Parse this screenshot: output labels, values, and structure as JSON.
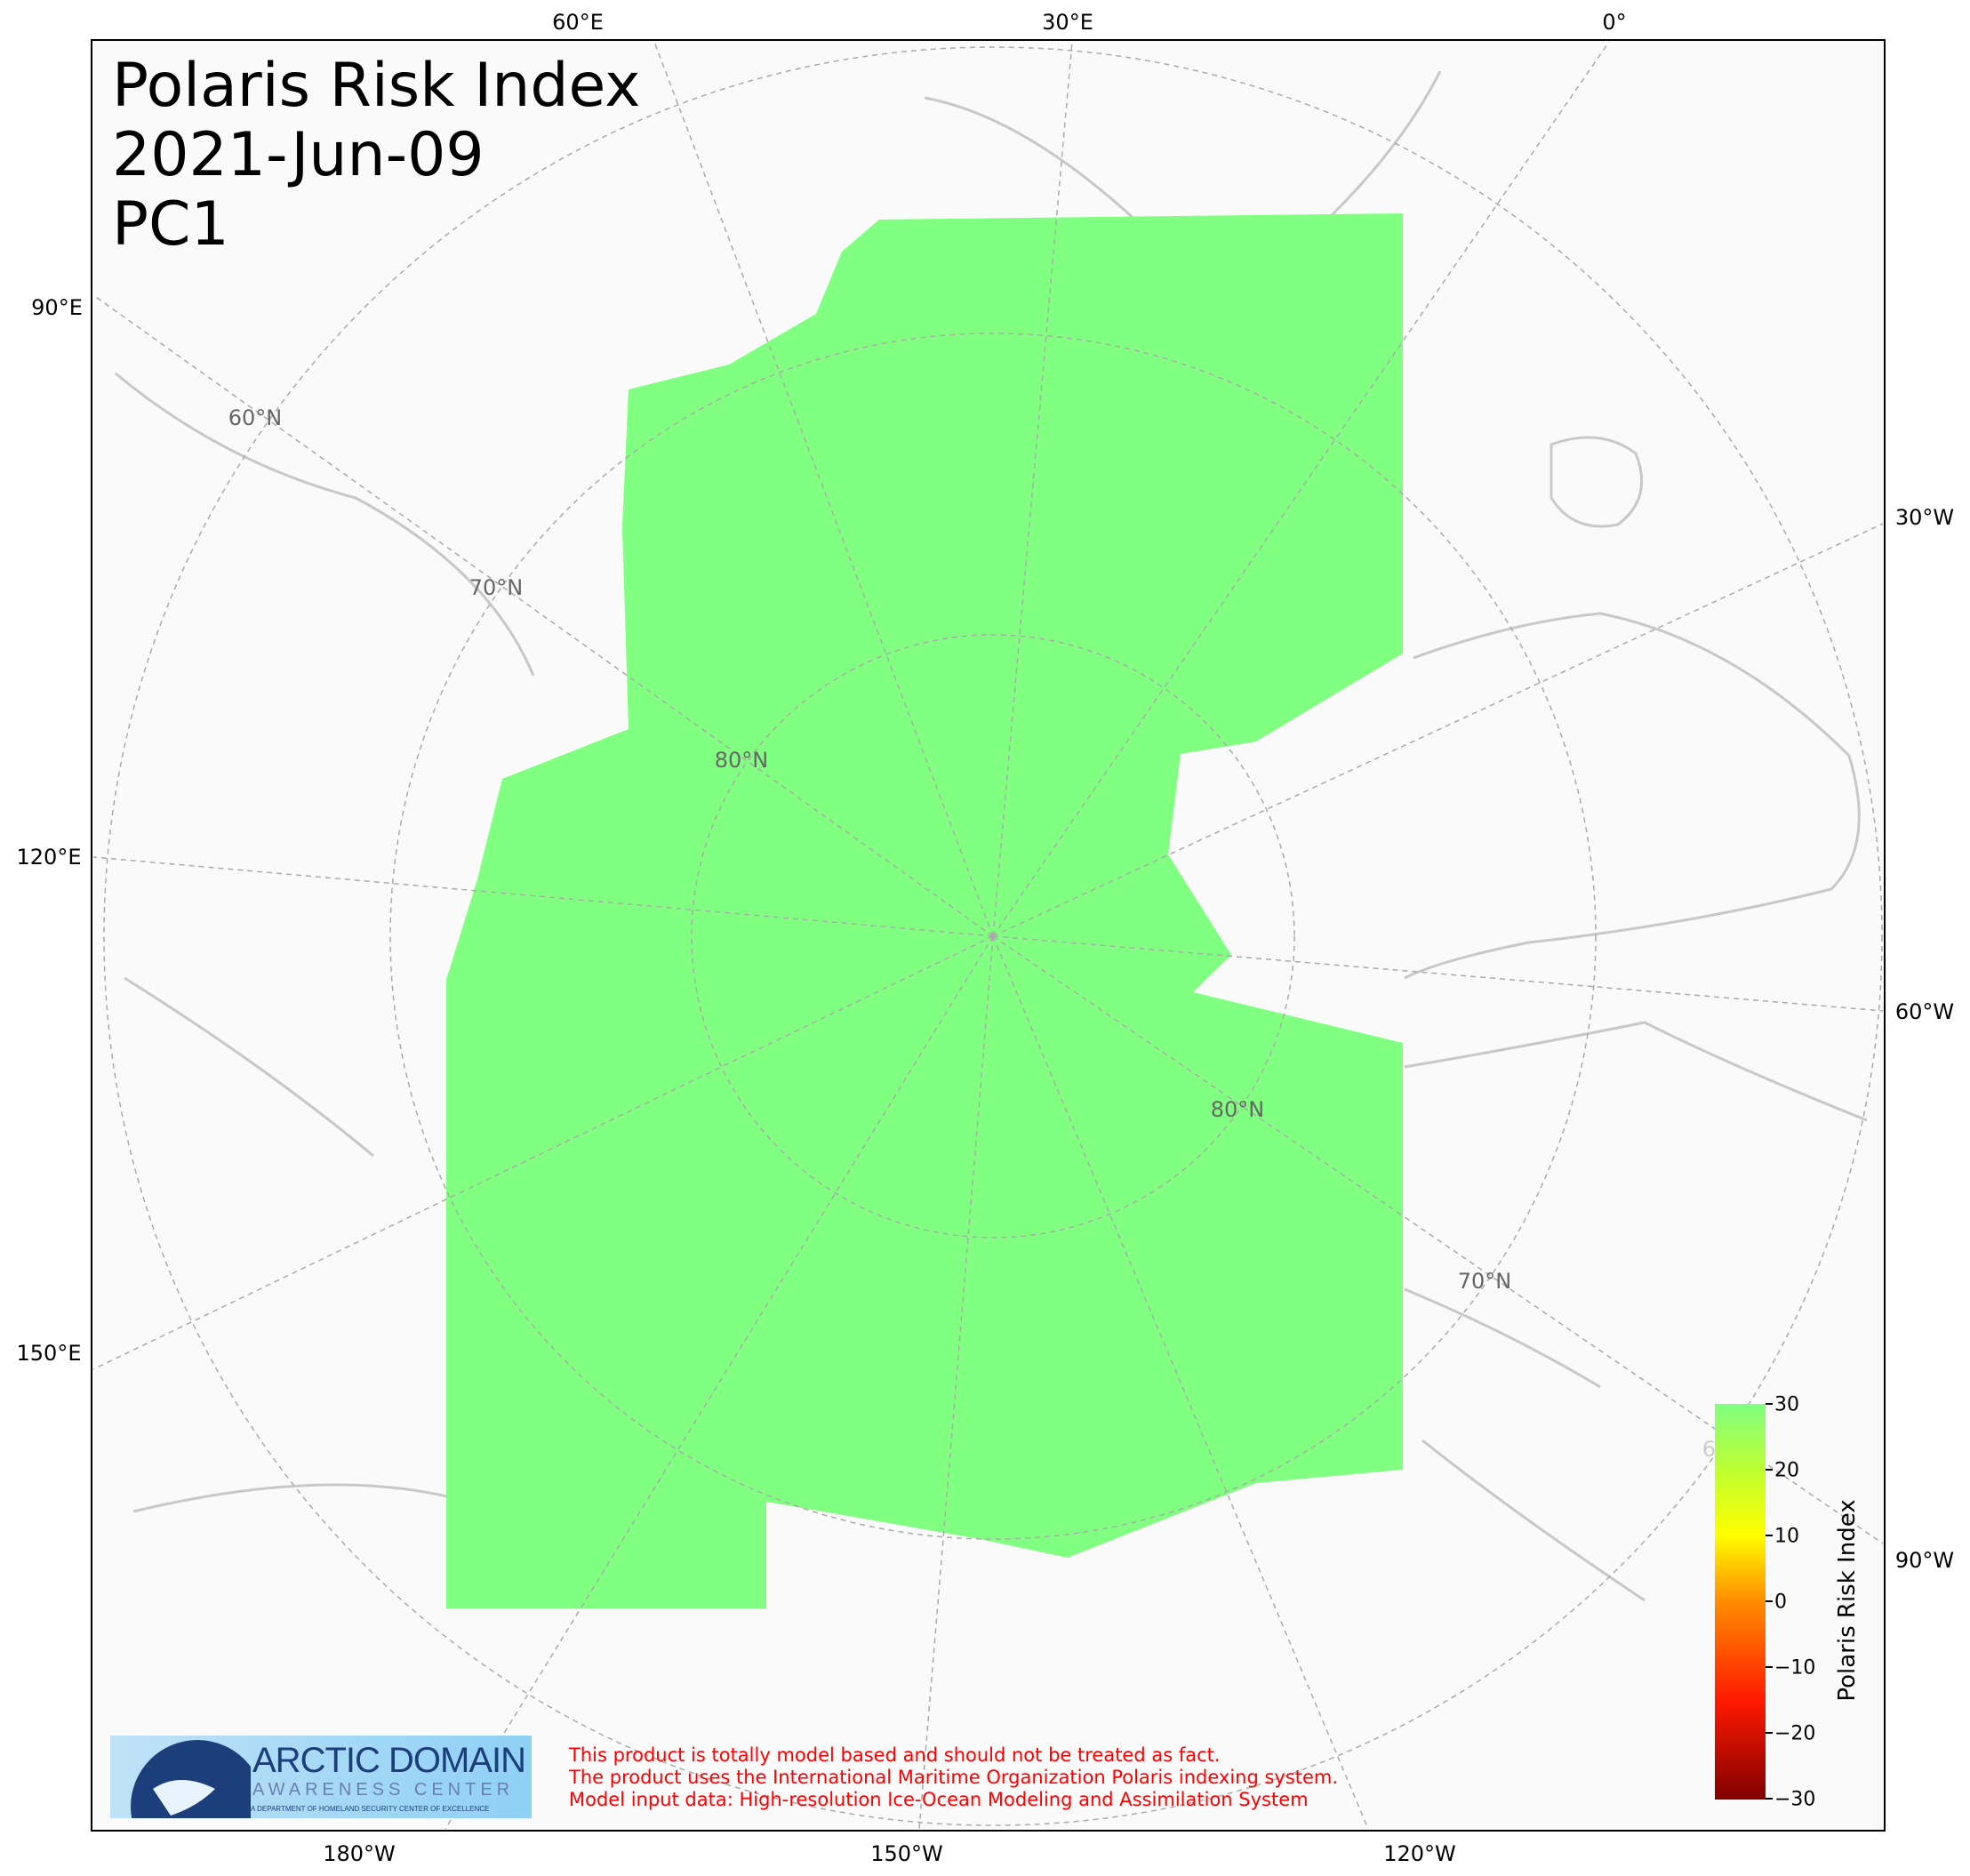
{
  "title": {
    "line1": "Polaris Risk Index",
    "line2": "2021-Jun-09",
    "line3": "PC1"
  },
  "map": {
    "projection": "north-polar-stereographic",
    "ocean_fill_color": "#80ff80",
    "land_color": "#fafafa",
    "coastline_color": "#c8c8c8",
    "gridline_color": "#aaaaaa",
    "longitude_labels": {
      "top": [
        "60°E",
        "30°E",
        "0°"
      ],
      "left": [
        "90°E",
        "120°E",
        "150°E"
      ],
      "right": [
        "30°W",
        "60°W",
        "90°W"
      ],
      "bottom": [
        "180°W",
        "150°W",
        "120°W"
      ]
    },
    "latitude_labels": [
      "60°N",
      "70°N",
      "80°N",
      "80°N",
      "70°N",
      "60°N"
    ]
  },
  "colorbar": {
    "label": "Polaris Risk Index",
    "range": [
      -30,
      30
    ],
    "ticks": [
      "30",
      "20",
      "10",
      "0",
      "−10",
      "−20",
      "−30"
    ],
    "colors": [
      "#800000",
      "#ff1a00",
      "#ff8c00",
      "#ffff00",
      "#80ff80"
    ]
  },
  "logo": {
    "line1": "ARCTIC DOMAIN",
    "line2": "AWARENESS CENTER",
    "line3": "A DEPARTMENT OF HOMELAND SECURITY CENTER OF EXCELLENCE"
  },
  "disclaimer": {
    "line1": "This product is totally model based and should not be treated as fact.",
    "line2": "The product uses the International Maritime Organization Polaris indexing system.",
    "line3": "Model input data: High-resolution Ice-Ocean Modeling and Assimilation System"
  }
}
